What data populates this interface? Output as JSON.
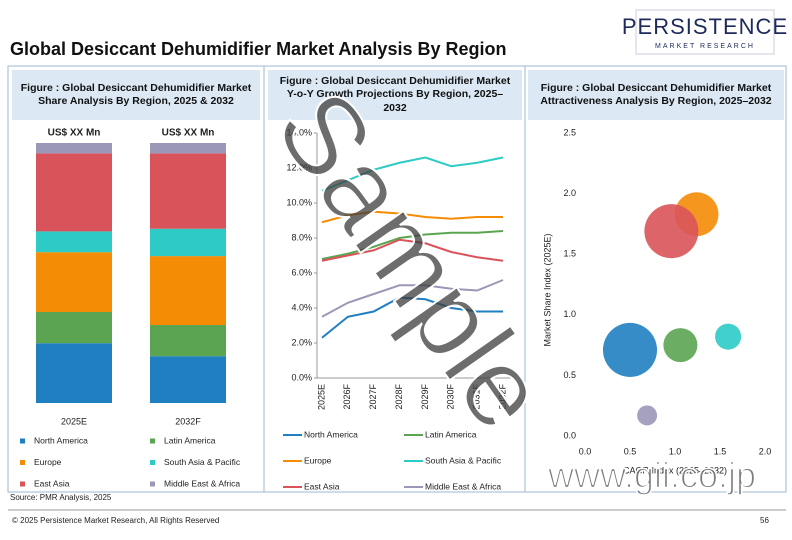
{
  "header": {
    "title": "Global Desiccant Dehumidifier Market Analysis By Region",
    "logo": "PERSISTENCE",
    "logo_sub": "MARKET RESEARCH"
  },
  "chart_data": [
    {
      "type": "bar",
      "stacked": true,
      "title": "Figure : Global Desiccant Dehumidifier Market Share Analysis By Region, 2025 & 2032",
      "categories": [
        "2025E",
        "2032F"
      ],
      "bar_labels": [
        "US$ XX Mn",
        "US$ XX Mn"
      ],
      "series": [
        {
          "name": "North America",
          "color": "#1f7fc0",
          "values": [
            23,
            18
          ]
        },
        {
          "name": "Latin America",
          "color": "#5ba552",
          "values": [
            12,
            12
          ]
        },
        {
          "name": "Europe",
          "color": "#f48c06",
          "values": [
            23,
            26.5
          ]
        },
        {
          "name": "South Asia & Pacific",
          "color": "#2ecbc6",
          "values": [
            8,
            10.5
          ]
        },
        {
          "name": "East Asia",
          "color": "#d9545a",
          "values": [
            30,
            29
          ]
        },
        {
          "name": "Middle East & Africa",
          "color": "#9b97b8",
          "values": [
            4,
            4
          ]
        }
      ]
    },
    {
      "type": "line",
      "title": "Figure : Global Desiccant Dehumidifier Market Y-o-Y Growth Projections By Region, 2025–2032",
      "categories": [
        "2025E",
        "2026F",
        "2027F",
        "2028F",
        "2029F",
        "2030F",
        "2031F",
        "2032F"
      ],
      "ylim": [
        0,
        14
      ],
      "yticks": [
        {
          "value": 0,
          "label": "0.0%"
        },
        {
          "value": 2,
          "label": "2.0%"
        },
        {
          "value": 4,
          "label": "4.0%"
        },
        {
          "value": 6,
          "label": "6.0%"
        },
        {
          "value": 8,
          "label": "8.0%"
        },
        {
          "value": 10,
          "label": "10.0%"
        },
        {
          "value": 12,
          "label": "12.0%"
        },
        {
          "value": 14,
          "label": "14.0%"
        }
      ],
      "series": [
        {
          "name": "North America",
          "color": "#1f7fc0",
          "values": [
            2.3,
            3.5,
            3.8,
            4.6,
            4.5,
            4.0,
            3.8,
            3.8
          ]
        },
        {
          "name": "Latin America",
          "color": "#5ba552",
          "values": [
            6.8,
            7.1,
            7.5,
            8.0,
            8.2,
            8.3,
            8.3,
            8.4
          ]
        },
        {
          "name": "Europe",
          "color": "#f48c06",
          "values": [
            8.9,
            9.3,
            9.5,
            9.4,
            9.2,
            9.1,
            9.2,
            9.2
          ]
        },
        {
          "name": "South Asia & Pacific",
          "color": "#2ecbc6",
          "values": [
            10.7,
            11.3,
            11.9,
            12.3,
            12.6,
            12.1,
            12.3,
            12.6
          ]
        },
        {
          "name": "East Asia",
          "color": "#d9545a",
          "values": [
            6.7,
            7.0,
            7.3,
            7.9,
            7.7,
            7.2,
            6.9,
            6.7
          ]
        },
        {
          "name": "Middle East & Africa",
          "color": "#9b97b8",
          "values": [
            3.5,
            4.3,
            4.8,
            5.3,
            5.3,
            5.1,
            5.0,
            5.6
          ]
        }
      ]
    },
    {
      "type": "scatter",
      "title": "Figure : Global Desiccant Dehumidifier Market Attractiveness Analysis By Region, 2025–2032",
      "x_label": "CAGR Index (2025–2032)",
      "y_label": "Market Share Index (2025E)",
      "xlim": [
        0,
        2
      ],
      "xticks": [
        {
          "value": 0,
          "label": "0.0"
        },
        {
          "value": 0.5,
          "label": "0.5"
        },
        {
          "value": 1,
          "label": "1.0"
        },
        {
          "value": 1.5,
          "label": "1.5"
        },
        {
          "value": 2,
          "label": "2.0"
        }
      ],
      "ylim": [
        0,
        2.5
      ],
      "yticks": [
        {
          "value": 0,
          "label": "0.0"
        },
        {
          "value": 0.5,
          "label": "0.5"
        },
        {
          "value": 1,
          "label": "1.0"
        },
        {
          "value": 1.5,
          "label": "1.5"
        },
        {
          "value": 2,
          "label": "2.0"
        },
        {
          "value": 2.5,
          "label": "2.5"
        }
      ],
      "x": [
        0.5,
        1.06,
        1.24,
        1.59,
        0.96,
        0.69
      ],
      "values": [
        0.71,
        0.75,
        1.83,
        0.82,
        1.69,
        0.17
      ],
      "sizes": [
        7.3,
        2.9,
        4.8,
        1.7,
        7.3,
        1.0
      ],
      "colors": [
        "#1f7fc0",
        "#5ba552",
        "#f48c06",
        "#2ecbc6",
        "#d9545a",
        "#9b97b8"
      ]
    }
  ],
  "source": "Source: PMR Analysis, 2025",
  "footer": {
    "copyright": "© 2025 Persistence Market Research, All Rights Reserved",
    "page": 56
  },
  "watermarks": [
    "Sample",
    "www.gii.co.jp"
  ]
}
